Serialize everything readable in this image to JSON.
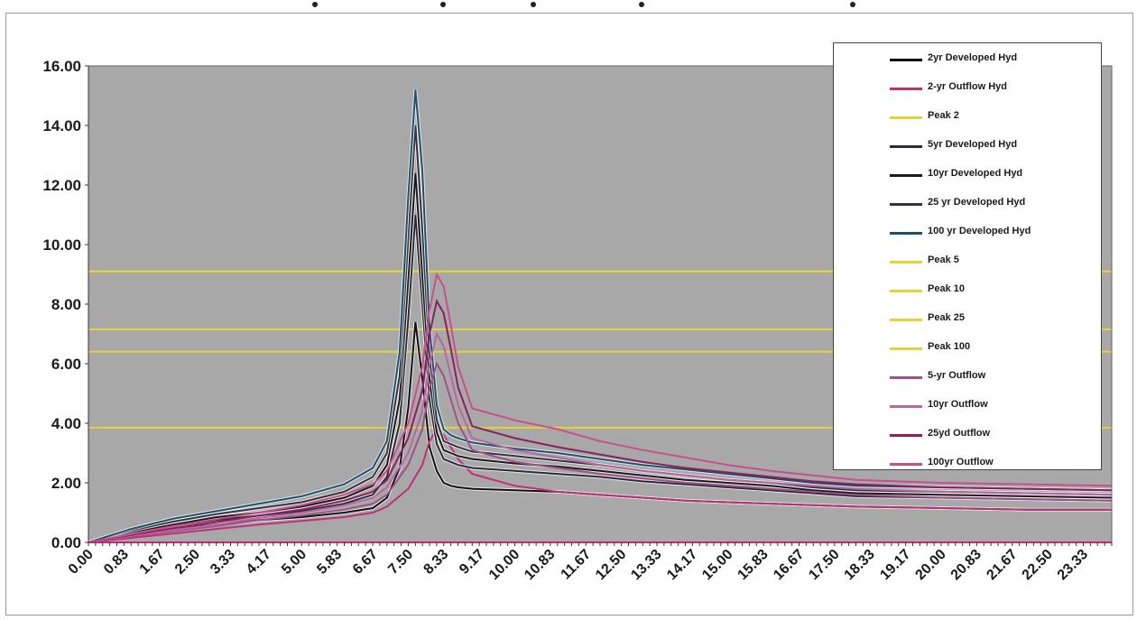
{
  "chart_data": {
    "type": "line",
    "title": "",
    "xlabel": "",
    "ylabel": "",
    "ylim": [
      0,
      16
    ],
    "xlim": [
      0,
      24
    ],
    "y_ticks": [
      "0.00",
      "2.00",
      "4.00",
      "6.00",
      "8.00",
      "10.00",
      "12.00",
      "14.00",
      "16.00"
    ],
    "x_tick_labels": [
      "0.00",
      "0.83",
      "1.67",
      "2.50",
      "3.33",
      "4.17",
      "5.00",
      "5.83",
      "6.67",
      "7.50",
      "8.33",
      "9.17",
      "10.00",
      "10.83",
      "11.67",
      "12.50",
      "13.33",
      "14.17",
      "15.00",
      "15.83",
      "16.67",
      "17.50",
      "18.33",
      "19.17",
      "20.00",
      "20.83",
      "21.67",
      "22.50",
      "23.33"
    ],
    "plot_background": "#a8a8a8",
    "grid": false,
    "legend_position": "top-right",
    "series": [
      {
        "name": "2yr Developed Hyd",
        "color": "#111111",
        "kind": "hydrograph",
        "x": [
          0,
          1,
          2,
          3,
          4,
          5,
          6,
          6.67,
          7,
          7.3,
          7.5,
          7.67,
          7.83,
          8,
          8.17,
          8.33,
          8.5,
          8.67,
          9,
          10,
          11,
          12,
          13,
          14,
          15,
          16,
          17,
          18,
          20,
          22,
          24
        ],
        "y": [
          0,
          0.25,
          0.45,
          0.6,
          0.75,
          0.85,
          1.0,
          1.15,
          1.5,
          2.5,
          4.5,
          7.4,
          5.5,
          3.2,
          2.4,
          2.0,
          1.9,
          1.85,
          1.8,
          1.75,
          1.7,
          1.6,
          1.5,
          1.4,
          1.35,
          1.3,
          1.25,
          1.2,
          1.15,
          1.1,
          1.1
        ]
      },
      {
        "name": "2-yr Outflow Hyd",
        "color": "#c0307a",
        "kind": "outflow",
        "x": [
          0,
          1,
          2,
          3,
          4,
          5,
          6,
          6.67,
          7,
          7.5,
          7.83,
          8,
          8.17,
          8.33,
          8.5,
          8.67,
          9,
          10,
          11,
          12,
          13,
          14,
          15,
          16,
          17,
          18,
          20,
          22,
          24
        ],
        "y": [
          0,
          0.15,
          0.3,
          0.45,
          0.6,
          0.72,
          0.85,
          1.0,
          1.2,
          1.8,
          2.6,
          3.4,
          3.8,
          3.6,
          3.2,
          2.8,
          2.3,
          1.9,
          1.7,
          1.6,
          1.5,
          1.4,
          1.35,
          1.3,
          1.25,
          1.2,
          1.15,
          1.1,
          1.1
        ]
      },
      {
        "name": "Peak 2",
        "color": "#e6d23a",
        "kind": "peak",
        "x": [
          0,
          24
        ],
        "y": [
          3.85,
          3.85
        ]
      },
      {
        "name": "5yr Developed Hyd",
        "color": "#2a2a3a",
        "kind": "hydrograph",
        "x": [
          0,
          1,
          2,
          3,
          4,
          5,
          6,
          6.67,
          7,
          7.3,
          7.5,
          7.67,
          7.83,
          8,
          8.17,
          8.33,
          8.5,
          8.67,
          9,
          10,
          11,
          12,
          13,
          14,
          15,
          16,
          17,
          18,
          20,
          22,
          24
        ],
        "y": [
          0,
          0.3,
          0.55,
          0.75,
          0.9,
          1.05,
          1.3,
          1.6,
          2.2,
          4.0,
          7.5,
          11.0,
          8.0,
          4.8,
          3.3,
          2.8,
          2.7,
          2.6,
          2.5,
          2.4,
          2.3,
          2.2,
          2.05,
          1.95,
          1.85,
          1.75,
          1.65,
          1.55,
          1.5,
          1.45,
          1.4
        ]
      },
      {
        "name": "10yr Developed Hyd",
        "color": "#1a1a1a",
        "kind": "hydrograph",
        "x": [
          0,
          1,
          2,
          3,
          4,
          5,
          6,
          6.67,
          7,
          7.3,
          7.5,
          7.67,
          7.83,
          8,
          8.17,
          8.33,
          8.5,
          8.67,
          9,
          10,
          11,
          12,
          13,
          14,
          15,
          16,
          17,
          18,
          20,
          22,
          24
        ],
        "y": [
          0,
          0.35,
          0.6,
          0.85,
          1.0,
          1.2,
          1.5,
          1.9,
          2.6,
          4.8,
          8.8,
          12.4,
          9.0,
          5.5,
          3.7,
          3.1,
          3.0,
          2.9,
          2.8,
          2.65,
          2.55,
          2.4,
          2.25,
          2.1,
          2.0,
          1.9,
          1.75,
          1.65,
          1.6,
          1.55,
          1.5
        ]
      },
      {
        "name": "25 yr Developed Hyd",
        "color": "#333344",
        "kind": "hydrograph",
        "x": [
          0,
          1,
          2,
          3,
          4,
          5,
          6,
          6.67,
          7,
          7.3,
          7.5,
          7.67,
          7.83,
          8,
          8.17,
          8.33,
          8.5,
          8.67,
          9,
          10,
          11,
          12,
          13,
          14,
          15,
          16,
          17,
          18,
          20,
          22,
          24
        ],
        "y": [
          0,
          0.4,
          0.7,
          0.95,
          1.15,
          1.35,
          1.7,
          2.2,
          3.0,
          5.6,
          10.2,
          14.0,
          10.5,
          6.3,
          4.1,
          3.4,
          3.3,
          3.2,
          3.05,
          2.9,
          2.75,
          2.6,
          2.4,
          2.25,
          2.1,
          2.0,
          1.85,
          1.75,
          1.7,
          1.65,
          1.6
        ]
      },
      {
        "name": "100 yr Developed Hyd",
        "color": "#1f4f6a",
        "kind": "hydrograph",
        "x": [
          0,
          1,
          2,
          3,
          4,
          5,
          6,
          6.67,
          7,
          7.3,
          7.5,
          7.67,
          7.83,
          8,
          8.17,
          8.33,
          8.5,
          8.67,
          9,
          10,
          11,
          12,
          13,
          14,
          15,
          16,
          17,
          18,
          20,
          22,
          24
        ],
        "y": [
          0,
          0.45,
          0.8,
          1.05,
          1.3,
          1.55,
          1.95,
          2.5,
          3.4,
          6.4,
          11.6,
          15.2,
          12.5,
          7.2,
          4.6,
          3.8,
          3.6,
          3.5,
          3.35,
          3.15,
          3.0,
          2.8,
          2.6,
          2.45,
          2.3,
          2.15,
          2.0,
          1.9,
          1.85,
          1.8,
          1.75
        ]
      },
      {
        "name": "Peak 5",
        "color": "#e6d23a",
        "kind": "peak",
        "x": [
          0,
          24
        ],
        "y": [
          6.4,
          6.4
        ]
      },
      {
        "name": "Peak 10",
        "color": "#e6d23a",
        "kind": "peak",
        "x": [
          0,
          24
        ],
        "y": [
          7.15,
          7.15
        ]
      },
      {
        "name": "Peak 25",
        "color": "#e6d23a",
        "kind": "peak",
        "x": [
          0,
          24
        ],
        "y": [
          9.1,
          9.1
        ]
      },
      {
        "name": "Peak 100",
        "color": "#e6d23a",
        "kind": "peak",
        "x": [
          0,
          24
        ],
        "y": [
          9.1,
          9.1
        ]
      },
      {
        "name": "5-yr Outflow",
        "color": "#a0508a",
        "kind": "outflow",
        "x": [
          0,
          1,
          2,
          3,
          4,
          5,
          6,
          6.67,
          7,
          7.5,
          7.83,
          8,
          8.17,
          8.33,
          8.5,
          8.67,
          9,
          10,
          11,
          12,
          13,
          14,
          15,
          16,
          17,
          18,
          20,
          22,
          24
        ],
        "y": [
          0,
          0.2,
          0.38,
          0.55,
          0.75,
          0.9,
          1.1,
          1.3,
          1.6,
          2.6,
          3.8,
          5.2,
          6.0,
          5.6,
          4.8,
          4.0,
          3.1,
          2.7,
          2.5,
          2.3,
          2.15,
          2.0,
          1.9,
          1.8,
          1.7,
          1.6,
          1.5,
          1.45,
          1.4
        ]
      },
      {
        "name": "10yr Outflow",
        "color": "#b868a0",
        "kind": "outflow",
        "x": [
          0,
          1,
          2,
          3,
          4,
          5,
          6,
          6.67,
          7,
          7.5,
          7.83,
          8,
          8.17,
          8.33,
          8.5,
          8.67,
          9,
          10,
          11,
          12,
          13,
          14,
          15,
          16,
          17,
          18,
          20,
          22,
          24
        ],
        "y": [
          0,
          0.22,
          0.42,
          0.6,
          0.82,
          1.0,
          1.25,
          1.5,
          1.85,
          3.0,
          4.4,
          6.0,
          7.0,
          6.6,
          5.6,
          4.6,
          3.5,
          3.1,
          2.85,
          2.6,
          2.4,
          2.25,
          2.1,
          2.0,
          1.9,
          1.8,
          1.7,
          1.65,
          1.6
        ]
      },
      {
        "name": "25yd Outflow",
        "color": "#8a2060",
        "kind": "outflow",
        "x": [
          0,
          1,
          2,
          3,
          4,
          5,
          6,
          6.67,
          7,
          7.5,
          7.83,
          8,
          8.17,
          8.33,
          8.5,
          8.67,
          9,
          10,
          11,
          12,
          13,
          14,
          15,
          16,
          17,
          18,
          20,
          22,
          24
        ],
        "y": [
          0,
          0.25,
          0.48,
          0.68,
          0.9,
          1.1,
          1.4,
          1.7,
          2.1,
          3.5,
          5.1,
          7.0,
          8.1,
          7.7,
          6.5,
          5.2,
          3.9,
          3.5,
          3.2,
          2.95,
          2.7,
          2.5,
          2.35,
          2.2,
          2.05,
          1.95,
          1.85,
          1.8,
          1.75
        ]
      },
      {
        "name": "100yr Outflow",
        "color": "#c8508a",
        "kind": "outflow",
        "x": [
          0,
          1,
          2,
          3,
          4,
          5,
          6,
          6.67,
          7,
          7.5,
          7.83,
          8,
          8.17,
          8.33,
          8.5,
          8.67,
          9,
          10,
          11,
          12,
          13,
          14,
          15,
          16,
          17,
          18,
          20,
          22,
          24
        ],
        "y": [
          0,
          0.28,
          0.55,
          0.78,
          1.0,
          1.25,
          1.6,
          1.95,
          2.4,
          4.0,
          5.9,
          7.8,
          9.0,
          8.6,
          7.3,
          5.9,
          4.5,
          4.1,
          3.8,
          3.4,
          3.1,
          2.85,
          2.6,
          2.4,
          2.25,
          2.1,
          2.0,
          1.95,
          1.9
        ]
      }
    ]
  }
}
